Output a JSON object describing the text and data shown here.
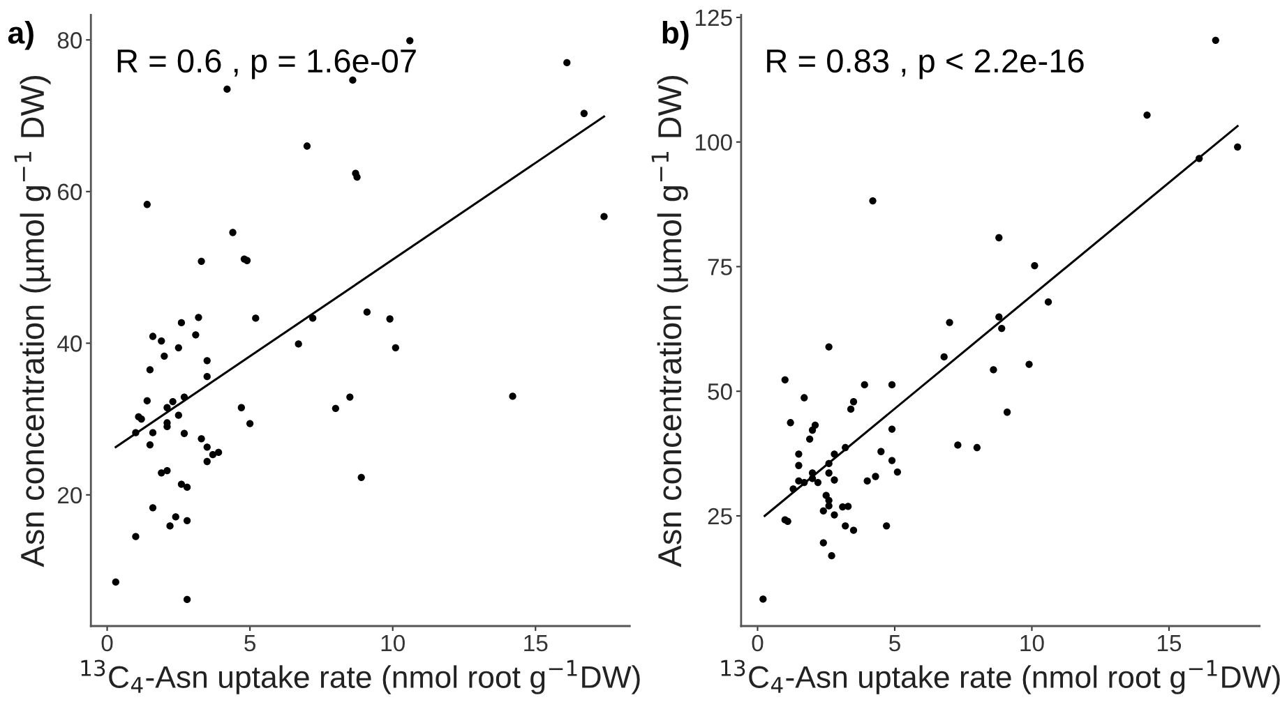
{
  "chart_data": [
    {
      "type": "scatter",
      "title": "a)",
      "xlabel": "$^{13}$C$_{4}$-Asn uptake rate (nmol root g$^{−1}$DW)",
      "ylabel": "Asn concentration (µmol g$^{−1}$ DW)",
      "annotations": [
        "R = 0.6 , p = 1.6e-07"
      ],
      "xlim": [
        -0.57,
        18.3
      ],
      "ylim": [
        2.7,
        83.3
      ],
      "xticks": [
        0,
        5,
        10,
        15
      ],
      "yticks": [
        20,
        40,
        60,
        80
      ],
      "grid": false,
      "series": [
        {
          "marker": "circle",
          "color": "#000000",
          "x": [
            10.6,
            16.1,
            4.2,
            8.6,
            16.7,
            7.0,
            8.7,
            8.75,
            1.4,
            17.4,
            4.4,
            4.8,
            4.9,
            3.3,
            5.2,
            3.2,
            7.2,
            9.1,
            9.9,
            10.1,
            6.7,
            2.6,
            1.6,
            1.9,
            3.1,
            2.5,
            2.0,
            3.5,
            1.5,
            3.5,
            1.4,
            8.5,
            8.0,
            14.2,
            4.7,
            5.0,
            1.1,
            1.2,
            2.7,
            2.3,
            2.1,
            2.5,
            2.1,
            2.1,
            1.0,
            1.6,
            2.7,
            1.5,
            3.3,
            3.5,
            3.5,
            3.7,
            3.9,
            8.9,
            1.9,
            2.1,
            2.6,
            2.8,
            1.6,
            2.4,
            2.2,
            2.8,
            1.0,
            0.3,
            2.8
          ],
          "values": [
            79.9,
            77.0,
            73.5,
            74.7,
            70.3,
            66.0,
            62.4,
            61.9,
            58.3,
            56.7,
            54.6,
            51.1,
            50.9,
            50.8,
            43.3,
            43.4,
            43.3,
            44.1,
            43.2,
            39.4,
            39.9,
            42.7,
            40.9,
            40.3,
            41.1,
            39.4,
            38.3,
            37.7,
            36.5,
            35.6,
            32.4,
            32.9,
            31.4,
            33.0,
            31.5,
            29.4,
            30.3,
            30.0,
            32.9,
            32.3,
            31.5,
            30.5,
            29.5,
            29.0,
            28.2,
            28.2,
            28.1,
            26.6,
            27.4,
            26.3,
            24.4,
            25.3,
            25.6,
            22.3,
            22.9,
            23.2,
            21.4,
            21.0,
            18.3,
            17.1,
            15.9,
            16.6,
            14.5,
            8.5,
            6.2
          ]
        },
        {
          "type": "line",
          "color": "#000000",
          "x": [
            0.3,
            17.4
          ],
          "values": [
            26.3,
            69.9
          ]
        }
      ]
    },
    {
      "type": "scatter",
      "title": "b)",
      "xlabel": "$^{13}$C$_{4}$-Asn uptake rate (nmol root g$^{−1}$DW)",
      "ylabel": "Asn concentration (µmol g$^{−1}$ DW)",
      "annotations": [
        "R = 0.83 , p < 2.2e-16"
      ],
      "xlim": [
        -0.6,
        18.3
      ],
      "ylim": [
        2.9,
        125.5
      ],
      "xticks": [
        0,
        5,
        10,
        15
      ],
      "yticks": [
        25,
        50,
        75,
        100,
        125
      ],
      "grid": false,
      "series": [
        {
          "marker": "circle",
          "color": "#000000",
          "x": [
            16.7,
            14.2,
            17.5,
            16.1,
            4.2,
            8.8,
            10.1,
            10.6,
            7.0,
            8.8,
            8.9,
            6.8,
            2.6,
            9.9,
            8.6,
            1.0,
            3.9,
            4.9,
            9.1,
            1.7,
            3.5,
            3.4,
            1.2,
            2.1,
            2.0,
            4.9,
            1.9,
            7.3,
            8.0,
            4.5,
            3.2,
            4.9,
            5.1,
            4.3,
            4.0,
            1.5,
            1.5,
            1.5,
            1.7,
            1.3,
            2.0,
            2.0,
            2.2,
            2.6,
            2.6,
            2.8,
            2.8,
            2.5,
            2.6,
            2.6,
            2.4,
            2.8,
            3.1,
            3.3,
            3.2,
            3.5,
            4.7,
            1.0,
            1.1,
            2.4,
            2.7,
            0.2
          ],
          "values": [
            120.4,
            105.4,
            99.0,
            96.7,
            88.2,
            80.8,
            75.2,
            67.9,
            63.8,
            64.9,
            62.6,
            56.9,
            58.9,
            55.4,
            54.3,
            52.3,
            51.3,
            51.3,
            45.8,
            48.7,
            47.9,
            46.4,
            43.7,
            43.2,
            42.2,
            42.4,
            40.4,
            39.2,
            38.7,
            37.9,
            38.7,
            36.1,
            33.8,
            32.9,
            32.0,
            37.4,
            35.1,
            32.0,
            31.7,
            30.4,
            33.6,
            32.5,
            31.7,
            35.5,
            33.6,
            32.2,
            37.4,
            29.1,
            28.1,
            27.0,
            26.0,
            25.2,
            26.8,
            26.9,
            23.0,
            22.1,
            23.0,
            24.2,
            23.9,
            19.6,
            17.0,
            8.3
          ]
        },
        {
          "type": "line",
          "color": "#000000",
          "x": [
            0.26,
            17.5
          ],
          "values": [
            25.0,
            103.2
          ]
        }
      ]
    }
  ]
}
